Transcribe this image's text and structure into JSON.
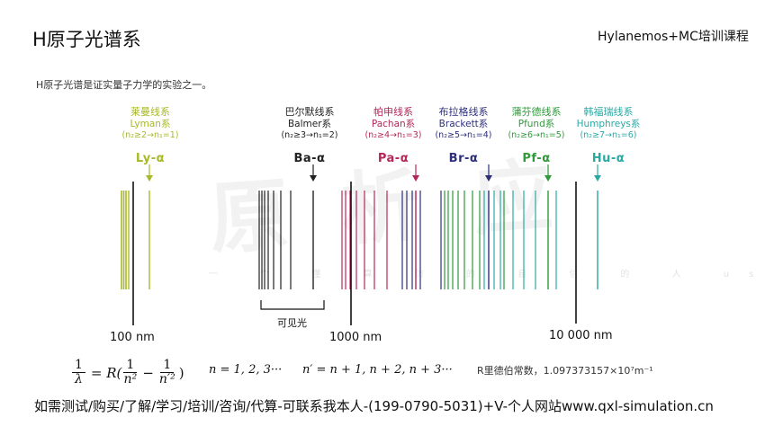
{
  "page": {
    "title": "H原子光谱系",
    "brand": "Hylanemos+MC培训课程",
    "intro": "H原子光谱是证实量子力学的实验之一。",
    "watermark": "原 析 应",
    "watermark_sub": "一 个 懂 算 仿 的 自 信 的 人 us"
  },
  "series": [
    {
      "id": "lyman",
      "zh": "莱曼线系",
      "en": "Lyman系",
      "cond": "(n₂≥2→n₁=1)",
      "symbol": "Ly-α",
      "color": "#a8b92a"
    },
    {
      "id": "balmer",
      "zh": "巴尔默线系",
      "en": "Balmer系",
      "cond": "(n₂≥3→n₁=2)",
      "symbol": "Ba-α",
      "color": "#222222"
    },
    {
      "id": "paschen",
      "zh": "帕申线系",
      "en": "Pachan系",
      "cond": "(n₂≥4→n₁=3)",
      "symbol": "Pa-α",
      "color": "#b3285a"
    },
    {
      "id": "brackett",
      "zh": "布拉格线系",
      "en": "Brackett系",
      "cond": "(n₂≥5→n₁=4)",
      "symbol": "Br-α",
      "color": "#2d2f7a"
    },
    {
      "id": "pfund",
      "zh": "蒲芬德线系",
      "en": "Pfund系",
      "cond": "(n₂≥6→n₁=5)",
      "symbol": "Pf-α",
      "color": "#2e9a3a"
    },
    {
      "id": "humphreys",
      "zh": "韩福瑞线系",
      "en": "Humphreys系",
      "cond": "(n₂≥7→n₁=6)",
      "symbol": "Hu-α",
      "color": "#2aa9a3"
    }
  ],
  "axis_labels": {
    "nm100": "100 nm",
    "nm1000": "1000 nm",
    "nm10000": "10 000 nm",
    "visible": "可见光"
  },
  "formula": {
    "lhs_num": "1",
    "lhs_den": "λ",
    "rhs_prefix": "= R(",
    "term1_num": "1",
    "term1_den": "n²",
    "minus": "−",
    "term2_num": "1",
    "term2_den": "n′²",
    "rhs_suffix": ")",
    "n_seq": "n = 1, 2, 3···",
    "nprime_seq": "n′ = n + 1, n + 2, n + 3···",
    "rydberg": "R里德伯常数，1.097373157×10⁷m⁻¹"
  },
  "contact": "如需测试/购买/了解/学习/培训/咨询/代算-可联系我本人-(199-0790-5031)+V-个人网站www.qxl-simulation.cn"
}
